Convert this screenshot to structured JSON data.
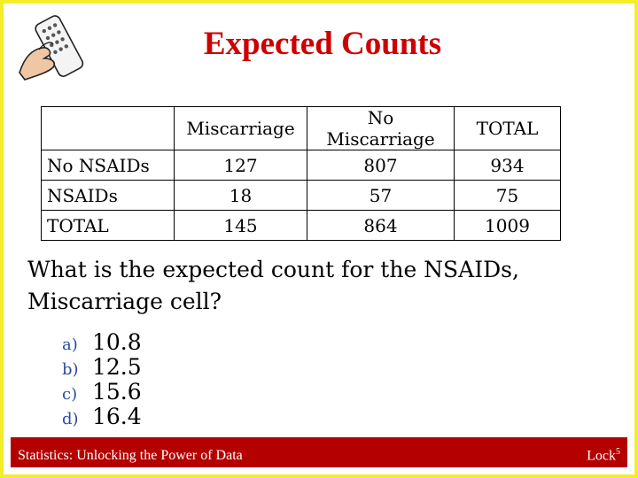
{
  "title": "Expected Counts",
  "table": {
    "header": [
      "",
      "Miscarriage",
      "No Miscarriage",
      "TOTAL"
    ],
    "rows": [
      [
        "No NSAIDs",
        "127",
        "807",
        "934"
      ],
      [
        "NSAIDs",
        "18",
        "57",
        "75"
      ],
      [
        "TOTAL",
        "145",
        "864",
        "1009"
      ]
    ]
  },
  "question": "What is the expected count for the NSAIDs, Miscarriage cell?",
  "choices": [
    {
      "letter": "a)",
      "value": "10.8"
    },
    {
      "letter": "b)",
      "value": "12.5"
    },
    {
      "letter": "c)",
      "value": "15.6"
    },
    {
      "letter": "d)",
      "value": "16.4"
    }
  ],
  "footer": {
    "left": "Statistics: Unlocking the Power of Data",
    "brand": "Lock",
    "brand_sup": "5"
  },
  "colors": {
    "border": "#f2ee2a",
    "title": "#cc0000",
    "footer_bg": "#b50000",
    "choice_letter": "#2d4aa0"
  },
  "icons": [
    "hand-holding-remote-icon"
  ]
}
